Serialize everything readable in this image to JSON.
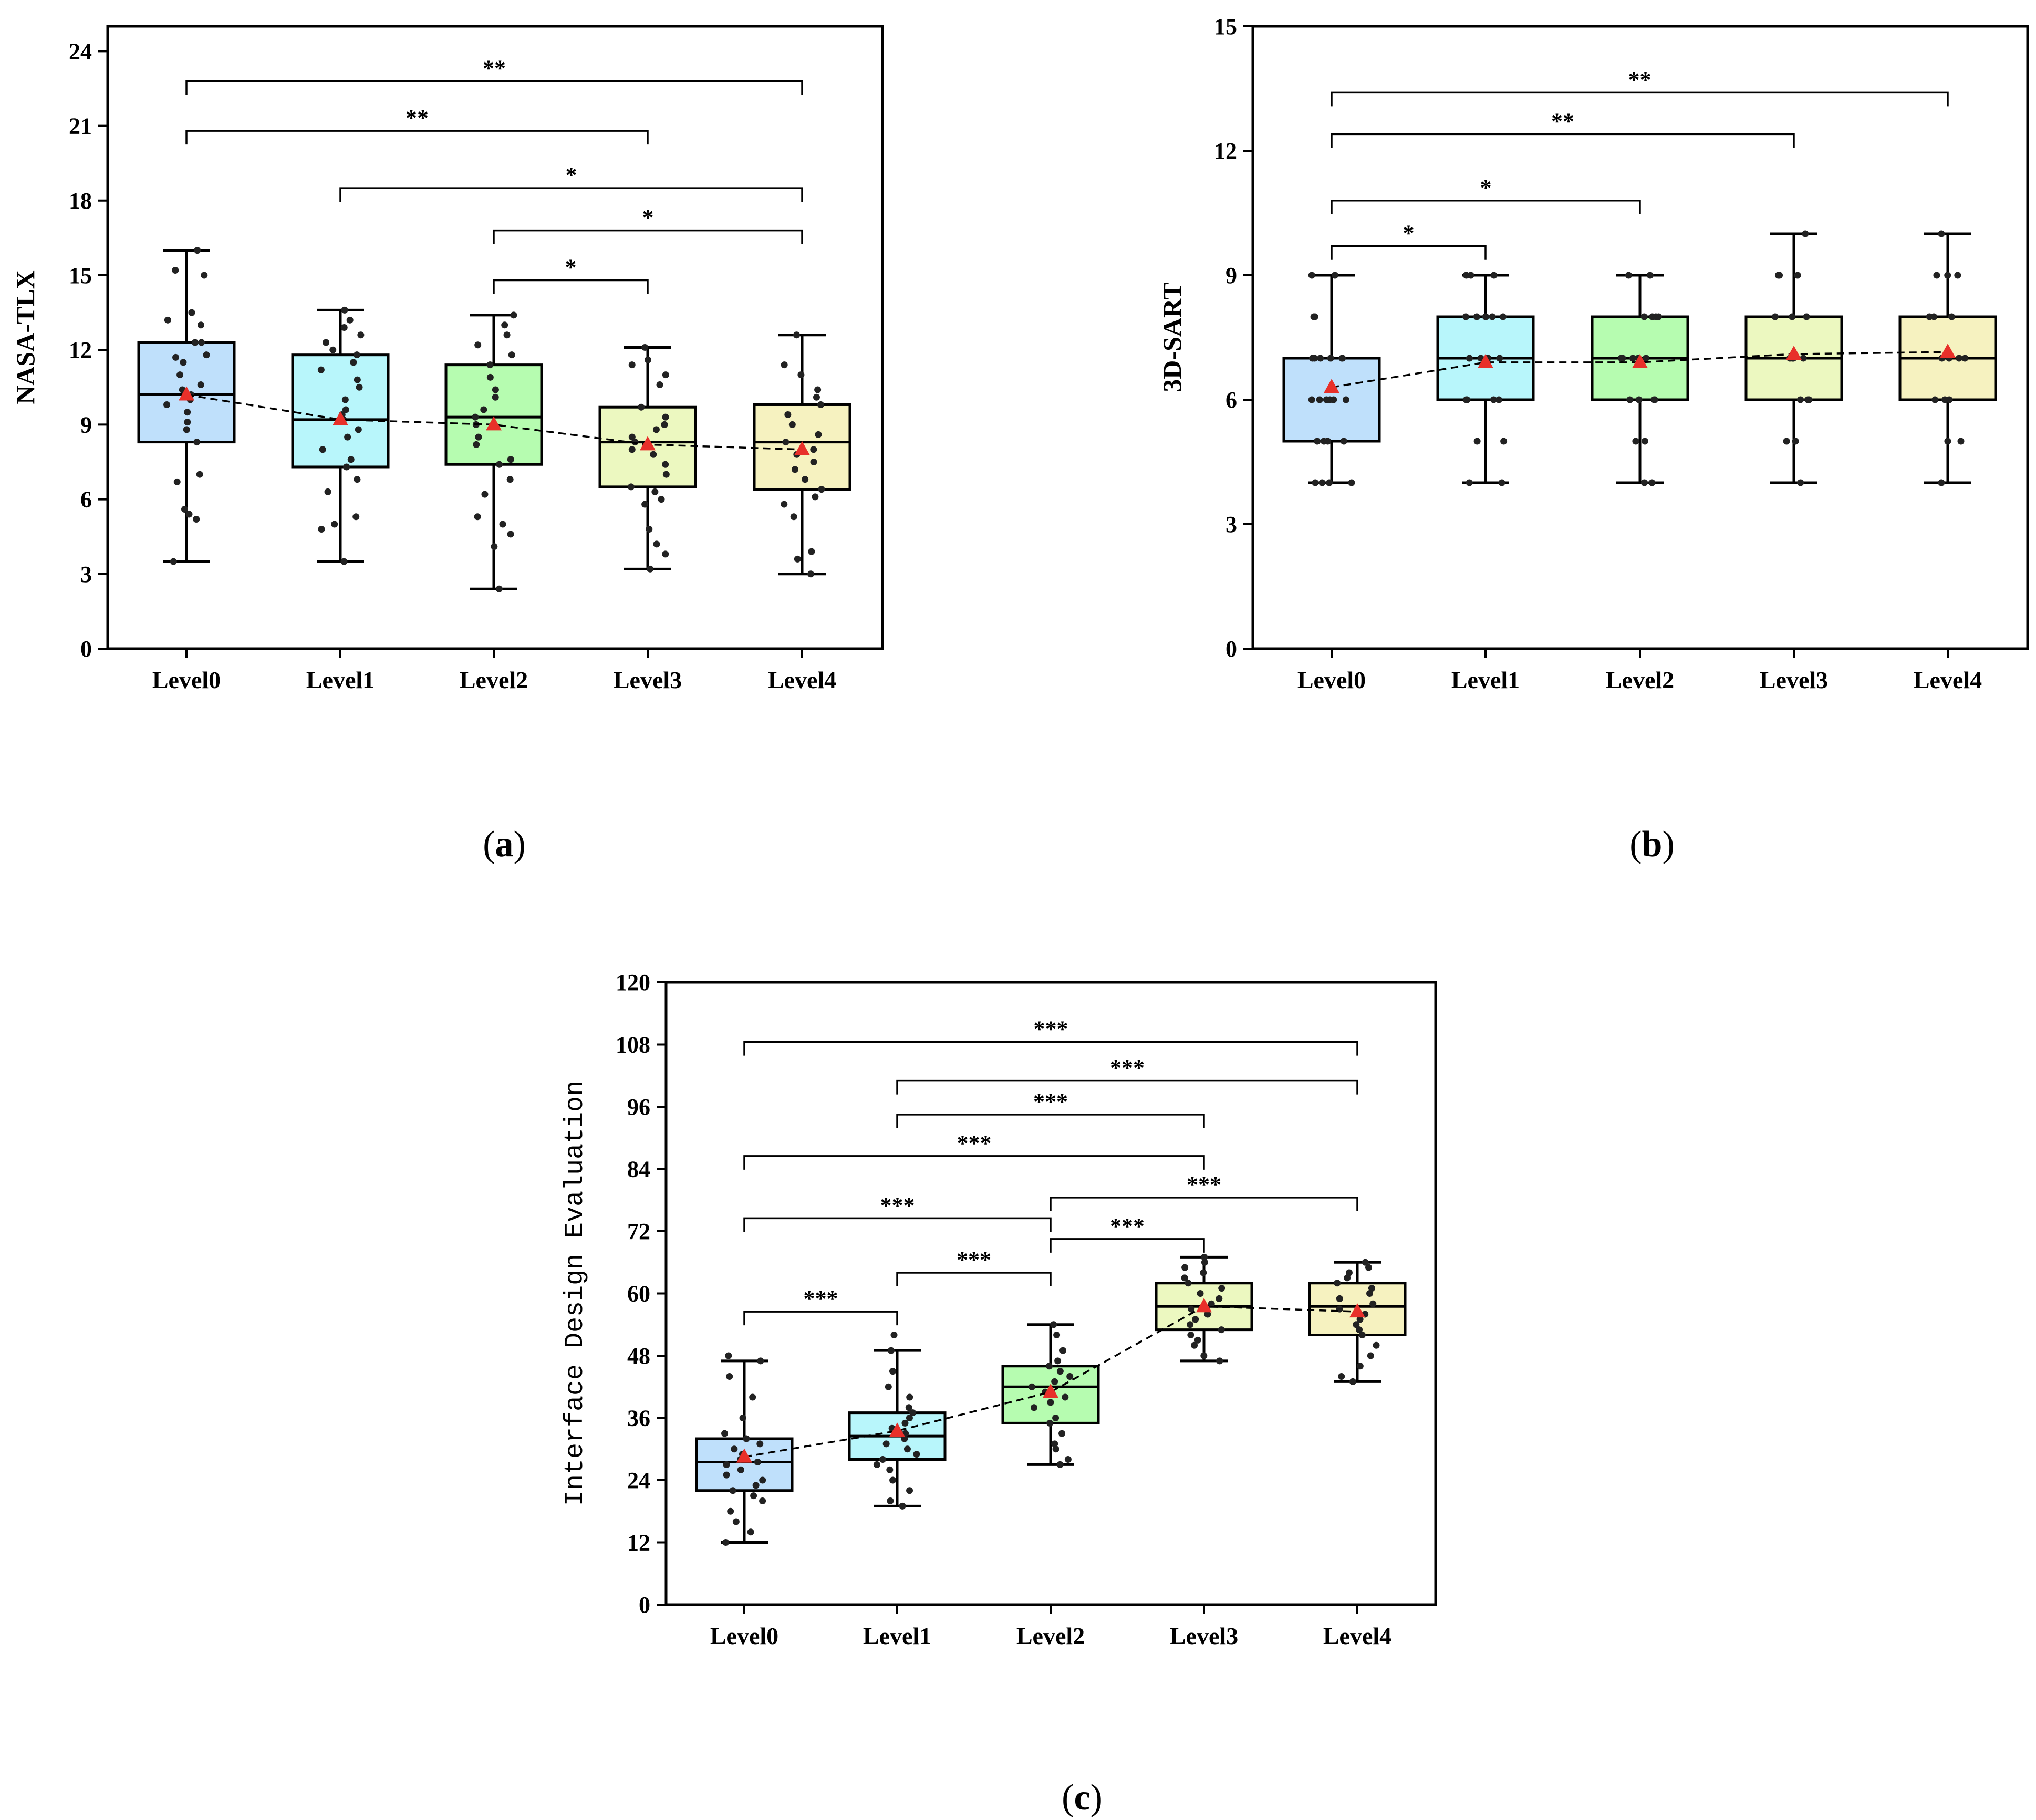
{
  "colors": {
    "level0": "#bfe0fb",
    "level1": "#b8f6fb",
    "level2": "#b6fcb0",
    "level3": "#ecf8c0",
    "level4": "#f6f2c0",
    "mean_marker": "#e8302a",
    "points": "#222222"
  },
  "chart_data": [
    {
      "id": "a",
      "caption": "(a)",
      "type": "box",
      "ylabel": "NASA-TLX",
      "ylim": [
        0,
        25
      ],
      "yticks": [
        0,
        3,
        6,
        9,
        12,
        15,
        18,
        21,
        24
      ],
      "categories": [
        "Level0",
        "Level1",
        "Level2",
        "Level3",
        "Level4"
      ],
      "boxes": [
        {
          "min": 3.5,
          "q1": 8.3,
          "median": 10.2,
          "q3": 12.3,
          "max": 16.0,
          "mean": 10.2,
          "points": [
            3.5,
            5.2,
            5.4,
            5.6,
            6.7,
            7.0,
            8.3,
            8.8,
            9.1,
            9.5,
            9.8,
            10.0,
            10.2,
            10.4,
            10.6,
            11.0,
            11.5,
            11.7,
            11.8,
            12.3,
            12.3,
            13.0,
            13.2,
            13.5,
            15.0,
            15.2,
            16.0
          ]
        },
        {
          "min": 3.5,
          "q1": 7.3,
          "median": 9.2,
          "q3": 11.8,
          "max": 13.6,
          "mean": 9.2,
          "points": [
            3.5,
            4.8,
            5.0,
            5.3,
            6.3,
            6.8,
            7.3,
            7.6,
            8.0,
            8.5,
            8.8,
            9.2,
            9.4,
            9.6,
            10.0,
            10.5,
            10.8,
            11.2,
            11.5,
            11.8,
            12.0,
            12.3,
            12.6,
            12.9,
            13.2,
            13.6
          ]
        },
        {
          "min": 2.4,
          "q1": 7.4,
          "median": 9.3,
          "q3": 11.4,
          "max": 13.4,
          "mean": 9.0,
          "points": [
            2.4,
            4.1,
            4.6,
            5.0,
            5.3,
            6.2,
            6.8,
            7.4,
            7.6,
            8.2,
            8.5,
            9.0,
            9.3,
            9.6,
            10.1,
            10.4,
            10.9,
            11.4,
            11.8,
            12.2,
            12.6,
            13.0,
            13.4
          ]
        },
        {
          "min": 3.2,
          "q1": 6.5,
          "median": 8.3,
          "q3": 9.7,
          "max": 12.1,
          "mean": 8.2,
          "points": [
            3.2,
            3.8,
            4.2,
            4.8,
            5.8,
            6.0,
            6.3,
            6.5,
            7.0,
            7.4,
            7.8,
            8.0,
            8.3,
            8.5,
            8.8,
            9.0,
            9.3,
            9.7,
            10.6,
            11.0,
            11.4,
            11.6,
            12.1
          ]
        },
        {
          "min": 3.0,
          "q1": 6.4,
          "median": 8.3,
          "q3": 9.8,
          "max": 12.6,
          "mean": 8.0,
          "points": [
            3.0,
            3.6,
            3.9,
            5.3,
            5.8,
            6.1,
            6.4,
            6.8,
            7.2,
            7.5,
            7.8,
            8.0,
            8.3,
            8.6,
            9.0,
            9.4,
            9.8,
            10.1,
            10.4,
            11.0,
            11.4,
            12.6
          ]
        }
      ],
      "significance": [
        {
          "from": 0,
          "to": 4,
          "label": "**",
          "y": 22.8
        },
        {
          "from": 0,
          "to": 3,
          "label": "**",
          "y": 20.8
        },
        {
          "from": 1,
          "to": 4,
          "label": "*",
          "y": 18.5
        },
        {
          "from": 2,
          "to": 4,
          "label": "*",
          "y": 16.8
        },
        {
          "from": 2,
          "to": 3,
          "label": "*",
          "y": 14.8
        }
      ]
    },
    {
      "id": "b",
      "caption": "(b)",
      "type": "box",
      "ylabel": "3D-SART",
      "ylim": [
        0,
        15
      ],
      "yticks": [
        0,
        3,
        6,
        9,
        12,
        15
      ],
      "categories": [
        "Level0",
        "Level1",
        "Level2",
        "Level3",
        "Level4"
      ],
      "boxes": [
        {
          "min": 4,
          "q1": 5,
          "median": 7,
          "q3": 7,
          "max": 9,
          "mean": 6.3,
          "points": [
            4,
            4,
            4,
            4,
            5,
            5,
            5,
            5,
            6,
            6,
            6,
            6,
            6,
            6,
            7,
            7,
            7,
            7,
            7,
            7,
            8,
            8,
            9,
            9
          ]
        },
        {
          "min": 4,
          "q1": 6,
          "median": 7,
          "q3": 8,
          "max": 9,
          "mean": 6.9,
          "points": [
            4,
            4,
            5,
            5,
            6,
            6,
            6,
            6,
            7,
            7,
            7,
            7,
            7,
            8,
            8,
            8,
            8,
            8,
            8,
            9,
            9,
            9
          ]
        },
        {
          "min": 4,
          "q1": 6,
          "median": 7,
          "q3": 8,
          "max": 9,
          "mean": 6.9,
          "points": [
            4,
            4,
            5,
            5,
            6,
            6,
            6,
            6,
            7,
            7,
            7,
            7,
            7,
            8,
            8,
            8,
            8,
            9,
            9
          ]
        },
        {
          "min": 4,
          "q1": 6,
          "median": 7,
          "q3": 8,
          "max": 10,
          "mean": 7.1,
          "points": [
            4,
            5,
            5,
            6,
            6,
            6,
            7,
            7,
            7,
            7,
            7,
            8,
            8,
            8,
            9,
            9,
            9,
            10
          ]
        },
        {
          "min": 4,
          "q1": 6,
          "median": 7,
          "q3": 8,
          "max": 10,
          "mean": 7.15,
          "points": [
            4,
            5,
            5,
            6,
            6,
            6,
            7,
            7,
            7,
            7,
            8,
            8,
            8,
            9,
            9,
            9,
            10
          ]
        }
      ],
      "significance": [
        {
          "from": 0,
          "to": 4,
          "label": "**",
          "y": 13.4
        },
        {
          "from": 0,
          "to": 3,
          "label": "**",
          "y": 12.4
        },
        {
          "from": 0,
          "to": 2,
          "label": "*",
          "y": 10.8
        },
        {
          "from": 0,
          "to": 1,
          "label": "*",
          "y": 9.7
        }
      ]
    },
    {
      "id": "c",
      "caption": "(c)",
      "type": "box",
      "ylabel": "Interface Design Evaluation",
      "ylim": [
        0,
        120
      ],
      "yticks": [
        0,
        12,
        24,
        36,
        48,
        60,
        72,
        84,
        96,
        108,
        120
      ],
      "categories": [
        "Level0",
        "Level1",
        "Level2",
        "Level3",
        "Level4"
      ],
      "boxes": [
        {
          "min": 12,
          "q1": 22,
          "median": 27.5,
          "q3": 32,
          "max": 47,
          "mean": 28.5,
          "points": [
            12,
            14,
            16,
            18,
            20,
            21,
            22,
            23,
            24,
            25,
            26,
            27,
            27.5,
            28,
            29,
            30,
            31,
            32,
            33,
            36,
            40,
            44,
            47,
            48
          ]
        },
        {
          "min": 19,
          "q1": 28,
          "median": 32.5,
          "q3": 37,
          "max": 49,
          "mean": 33.5,
          "points": [
            19,
            20,
            22,
            24,
            26,
            27,
            28,
            29,
            30,
            31,
            32,
            33,
            34,
            35,
            36,
            37,
            38,
            40,
            42,
            45,
            49,
            52
          ]
        },
        {
          "min": 27,
          "q1": 35,
          "median": 42,
          "q3": 46,
          "max": 54,
          "mean": 41,
          "points": [
            27,
            28,
            30,
            31,
            33,
            35,
            36,
            38,
            39,
            40,
            41,
            42,
            43,
            44,
            45,
            46,
            47,
            49,
            52,
            54
          ]
        },
        {
          "min": 47,
          "q1": 53,
          "median": 57.5,
          "q3": 62,
          "max": 67,
          "mean": 57.5,
          "points": [
            47,
            48,
            50,
            51,
            52,
            53,
            54,
            55,
            56,
            57,
            58,
            59,
            60,
            61,
            62,
            63,
            64,
            65,
            66,
            67
          ]
        },
        {
          "min": 43,
          "q1": 52,
          "median": 57.5,
          "q3": 62,
          "max": 66,
          "mean": 56.5,
          "points": [
            43,
            44,
            46,
            48,
            50,
            52,
            53,
            54,
            55,
            56,
            57,
            58,
            59,
            60,
            61,
            62,
            63,
            64,
            65,
            66
          ]
        }
      ],
      "significance": [
        {
          "from": 0,
          "to": 4,
          "label": "***",
          "y": 108.5
        },
        {
          "from": 1,
          "to": 4,
          "label": "***",
          "y": 101
        },
        {
          "from": 1,
          "to": 3,
          "label": "***",
          "y": 94.5
        },
        {
          "from": 0,
          "to": 3,
          "label": "***",
          "y": 86.5
        },
        {
          "from": 2,
          "to": 4,
          "label": "***",
          "y": 78.5
        },
        {
          "from": 0,
          "to": 2,
          "label": "***",
          "y": 74.5
        },
        {
          "from": 2,
          "to": 3,
          "label": "***",
          "y": 70.5
        },
        {
          "from": 1,
          "to": 2,
          "label": "***",
          "y": 64
        },
        {
          "from": 0,
          "to": 1,
          "label": "***",
          "y": 56.5
        }
      ]
    }
  ]
}
